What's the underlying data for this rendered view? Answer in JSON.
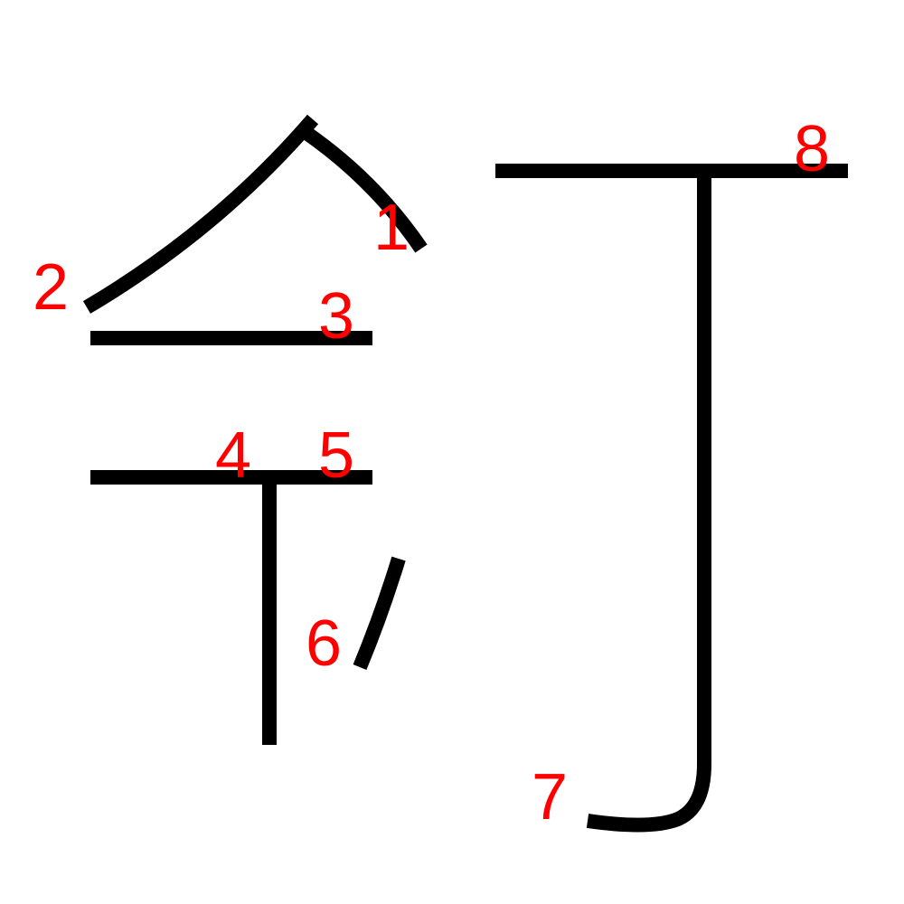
{
  "colors": {
    "stroke": "#000000",
    "label": "#ff0000",
    "background": "#ffffff"
  },
  "strokes": [
    {
      "order": 1,
      "label": "1"
    },
    {
      "order": 2,
      "label": "2"
    },
    {
      "order": 3,
      "label": "3"
    },
    {
      "order": 4,
      "label": "4"
    },
    {
      "order": 5,
      "label": "5"
    },
    {
      "order": 6,
      "label": "6"
    },
    {
      "order": 7,
      "label": "7"
    },
    {
      "order": 8,
      "label": "8"
    }
  ]
}
